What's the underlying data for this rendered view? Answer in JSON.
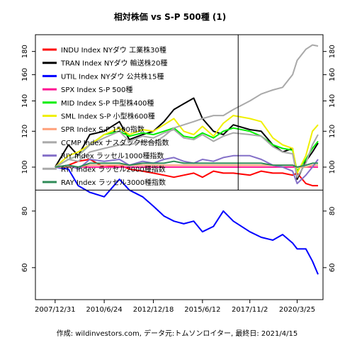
{
  "chart_data": {
    "type": "line",
    "title": "相対株価 vs S-P 500種 (1)",
    "footer": "作成: wildinvestors.com, データ元:トムソンロイター, 最終日: 2021/4/15",
    "x_tick_labels": [
      "2007/12/31",
      "2010/6/24",
      "2012/12/18",
      "2015/6/12",
      "2017/11/2",
      "2020/3/25"
    ],
    "y_ticks": [
      60,
      80,
      100,
      120,
      140,
      160,
      180
    ],
    "ylim": [
      51,
      196
    ],
    "y_scale": "log",
    "grid": false,
    "legend_position": "top-left",
    "crosshair": {
      "x": "2017/4/1",
      "y": 89
    },
    "x_dates": [
      "2007/12/31",
      "2008/9/1",
      "2009/3/1",
      "2009/10/1",
      "2010/6/24",
      "2011/4/1",
      "2011/10/1",
      "2012/6/1",
      "2012/12/18",
      "2013/7/1",
      "2014/1/1",
      "2014/7/1",
      "2015/1/1",
      "2015/6/12",
      "2016/1/1",
      "2016/7/1",
      "2017/1/1",
      "2017/11/2",
      "2018/6/1",
      "2019/1/1",
      "2019/7/1",
      "2020/1/1",
      "2020/3/25",
      "2020/9/1",
      "2021/1/1",
      "2021/4/15"
    ],
    "series": [
      {
        "name": "INDU Index NYダウ 工業株30種",
        "color": "#ff0000",
        "values": [
          100,
          101,
          103,
          104,
          100,
          101,
          99,
          98,
          97,
          96,
          95,
          96,
          97,
          95,
          98,
          97,
          97,
          96,
          98,
          97,
          97,
          96,
          97,
          92,
          91,
          91
        ]
      },
      {
        "name": "TRAN Index NYダウ 輸送株20種",
        "color": "#000000",
        "values": [
          100,
          112,
          106,
          118,
          120,
          126,
          115,
          118,
          120,
          126,
          134,
          138,
          142,
          128,
          120,
          118,
          124,
          121,
          120,
          112,
          108,
          110,
          94,
          103,
          108,
          113
        ]
      },
      {
        "name": "UTIL Index NYダウ 公共株15種",
        "color": "#0000ff",
        "values": [
          100,
          99,
          91,
          88,
          86,
          94,
          89,
          86,
          82,
          78,
          76,
          75,
          76,
          72,
          74,
          80,
          76,
          72,
          70,
          69,
          71,
          68,
          66,
          66,
          62,
          58
        ]
      },
      {
        "name": "SPX Index S-P 500種",
        "color": "#ff1493",
        "values": [
          100,
          100,
          100,
          100,
          100,
          100,
          100,
          100,
          100,
          100,
          100,
          100,
          100,
          100,
          100,
          100,
          100,
          100,
          100,
          100,
          100,
          100,
          100,
          100,
          100,
          100
        ]
      },
      {
        "name": "MID Index S-P 中型株400種",
        "color": "#00ee00",
        "values": [
          100,
          104,
          106,
          112,
          118,
          120,
          117,
          119,
          118,
          120,
          122,
          117,
          116,
          119,
          116,
          120,
          122,
          120,
          117,
          112,
          110,
          109,
          98,
          104,
          110,
          114
        ]
      },
      {
        "name": "SML Index S-P 小型株600種",
        "color": "#f0f000",
        "values": [
          100,
          106,
          108,
          112,
          118,
          122,
          118,
          121,
          120,
          124,
          128,
          120,
          118,
          123,
          117,
          125,
          130,
          128,
          126,
          116,
          112,
          110,
          97,
          106,
          120,
          124
        ]
      },
      {
        "name": "SPR Index S-P 1500指数",
        "color": "#ffa07a",
        "values": [
          100,
          100,
          100,
          101,
          101,
          101,
          101,
          101,
          101,
          101,
          101,
          101,
          101,
          101,
          101,
          101,
          101,
          101,
          101,
          101,
          101,
          101,
          100,
          100,
          101,
          101
        ]
      },
      {
        "name": "CCMP Index ナスダック総合指数",
        "color": "#a9a9a9",
        "values": [
          100,
          104,
          103,
          108,
          110,
          112,
          112,
          114,
          113,
          117,
          122,
          124,
          126,
          128,
          130,
          130,
          134,
          140,
          145,
          148,
          150,
          160,
          172,
          182,
          186,
          185
        ]
      },
      {
        "name": "RIY Index ラッセル1000種指数",
        "color": "#8470c8",
        "values": [
          100,
          101,
          99,
          104,
          103,
          104,
          101,
          103,
          102,
          104,
          105,
          103,
          102,
          104,
          103,
          105,
          106,
          106,
          104,
          101,
          100,
          98,
          92,
          96,
          100,
          104
        ]
      },
      {
        "name": "RTY Index ラッセル2000種指数",
        "color": "#a9a9a9",
        "values": [
          100,
          104,
          106,
          112,
          116,
          120,
          114,
          117,
          116,
          119,
          121,
          116,
          115,
          118,
          114,
          117,
          119,
          118,
          117,
          111,
          108,
          107,
          95,
          102,
          112,
          118
        ]
      },
      {
        "name": "RAY Index ラッセル3000種指数",
        "color": "#2e8b57",
        "values": [
          100,
          101,
          100,
          102,
          102,
          102,
          101,
          102,
          102,
          102,
          103,
          102,
          102,
          102,
          102,
          102,
          102,
          102,
          102,
          101,
          101,
          101,
          100,
          101,
          102,
          102
        ]
      }
    ]
  }
}
